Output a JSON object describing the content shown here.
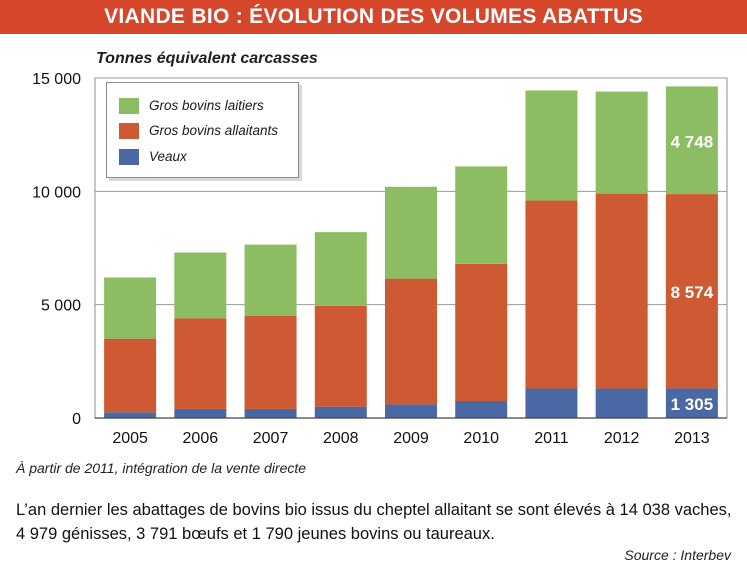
{
  "header": {
    "title": "VIANDE BIO : ÉVOLUTION DES VOLUMES ABATTUS"
  },
  "colors": {
    "title_bg": "#d5462a",
    "laitiers": "#8cbd62",
    "allaitants": "#cd5a33",
    "veaux": "#4a69a4"
  },
  "chart_data": {
    "type": "bar",
    "stacked": true,
    "ylabel": "Tonnes équivalent carcasses",
    "categories": [
      "2005",
      "2006",
      "2007",
      "2008",
      "2009",
      "2010",
      "2011",
      "2012",
      "2013"
    ],
    "series": [
      {
        "name": "Veaux",
        "color": "#4a69a4",
        "values": [
          250,
          400,
          400,
          500,
          600,
          750,
          1300,
          1300,
          1305
        ]
      },
      {
        "name": "Gros bovins allaitants",
        "color": "#cd5a33",
        "values": [
          3250,
          4000,
          4100,
          4450,
          5550,
          6050,
          8300,
          8600,
          8574
        ]
      },
      {
        "name": "Gros bovins laitiers",
        "color": "#8cbd62",
        "values": [
          2700,
          2900,
          3150,
          3250,
          4050,
          4300,
          4850,
          4500,
          4748
        ]
      }
    ],
    "data_labels": [
      "4 748",
      "8 574",
      "1 305"
    ],
    "yticks": [
      "0",
      "5 000",
      "10 000",
      "15 000"
    ],
    "ylim": [
      0,
      15000
    ],
    "grid": true,
    "legend_position": "top-left"
  },
  "legend": {
    "items": [
      {
        "label": "Gros bovins laitiers",
        "color": "#8cbd62"
      },
      {
        "label": "Gros bovins allaitants",
        "color": "#cd5a33"
      },
      {
        "label": "Veaux",
        "color": "#4a69a4"
      }
    ]
  },
  "footnote": "À partir de 2011, intégration de la vente directe",
  "paragraph": "L’an dernier les abattages de bovins bio issus du cheptel allaitant se sont élevés à 14 038 vaches, 4 979 génisses, 3 791 bœufs et 1 790 jeunes bovins ou taureaux.",
  "source": "Source : Interbev"
}
